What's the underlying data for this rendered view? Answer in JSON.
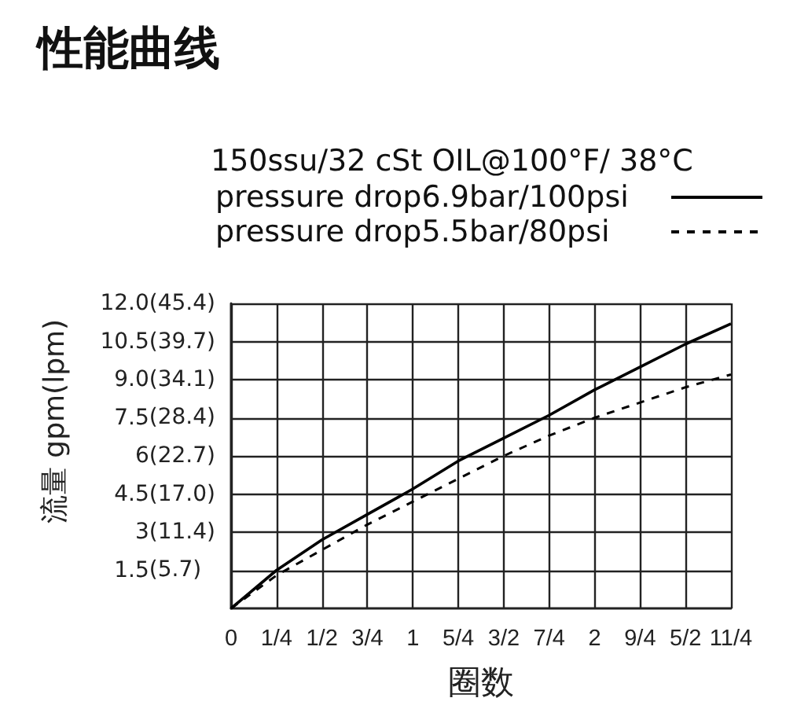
{
  "chart_data": {
    "type": "line",
    "title": "性能曲线",
    "legend_title": "150ssu/32 cSt OIL@100°F/ 38°C",
    "xlabel": "圈数",
    "ylabel": "流量 gpm(lpm)",
    "x": [
      0,
      0.25,
      0.5,
      0.75,
      1,
      1.25,
      1.5,
      1.75,
      2,
      2.25,
      2.5,
      2.75
    ],
    "series": [
      {
        "name": "pressure drop6.9bar/100psi",
        "color": "#000000",
        "line_style": "solid",
        "values": [
          0,
          1.5,
          2.7,
          3.7,
          4.7,
          5.8,
          6.7,
          7.6,
          8.6,
          9.5,
          10.4,
          11.2
        ]
      },
      {
        "name": "pressure drop5.5bar/80psi",
        "color": "#000000",
        "line_style": "dashed",
        "values": [
          0,
          1.3,
          2.3,
          3.3,
          4.2,
          5.1,
          6.0,
          6.8,
          7.5,
          8.1,
          8.7,
          9.2
        ]
      }
    ],
    "xlim": [
      0,
      2.75
    ],
    "xticks": [
      0,
      {
        "value": 0.25,
        "label": "1/4"
      },
      {
        "value": 0.5,
        "label": "1/2"
      },
      {
        "value": 0.75,
        "label": "3/4"
      },
      1,
      {
        "value": 1.25,
        "label": "5/4"
      },
      {
        "value": 1.5,
        "label": "3/2"
      },
      {
        "value": 1.75,
        "label": "7/4"
      },
      2,
      {
        "value": 2.25,
        "label": "9/4"
      },
      {
        "value": 2.5,
        "label": "5/2"
      },
      {
        "value": 2.75,
        "label": "11/4"
      }
    ],
    "ylim": [
      0,
      12
    ],
    "yticks": [
      1.5,
      3,
      4.5,
      6,
      7.5,
      {
        "value": 9,
        "label": "9.0"
      },
      10.5,
      {
        "value": 12,
        "label": "12.0"
      }
    ],
    "y2lim": [
      0,
      45.4
    ],
    "y2ticks": [
      {
        "value": 5.7,
        "label": "(5.7)"
      },
      {
        "value": 11.4,
        "label": "(11.4)"
      },
      {
        "value": 17.0,
        "label": "(17.0)"
      },
      {
        "value": 22.7,
        "label": "(22.7)"
      },
      {
        "value": 28.4,
        "label": "(28.4)"
      },
      {
        "value": 34.1,
        "label": "(34.1)"
      },
      {
        "value": 39.7,
        "label": "(39.7)"
      },
      {
        "value": 45.4,
        "label": "(45.4)"
      }
    ],
    "grid": true,
    "legend": "top right",
    "marker": "none"
  }
}
